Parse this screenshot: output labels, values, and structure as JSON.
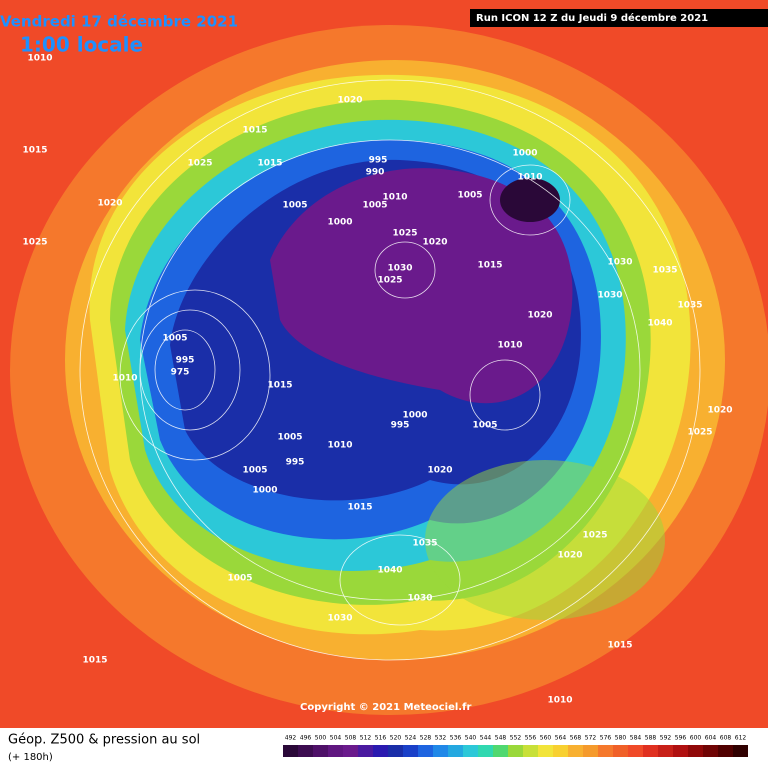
{
  "header": {
    "date": "Vendredi 17 décembre 2021",
    "time": "1:00 locale",
    "run": "Run ICON 12 Z du Jeudi 9 décembre 2021"
  },
  "copyright": "Copyright © 2021 Meteociel.fr",
  "legend": {
    "title": "Géop. Z500 & pression au sol",
    "lead": "(+ 180h)",
    "scale": [
      "492",
      "496",
      "500",
      "504",
      "508",
      "512",
      "516",
      "520",
      "524",
      "528",
      "532",
      "536",
      "540",
      "544",
      "548",
      "552",
      "556",
      "560",
      "564",
      "568",
      "572",
      "576",
      "580",
      "584",
      "588",
      "592",
      "596",
      "600",
      "604",
      "608",
      "612"
    ]
  },
  "pressure_labels": [
    "1010",
    "1015",
    "1020",
    "1025",
    "1015",
    "1020",
    "1025",
    "1015",
    "1005",
    "995",
    "990",
    "1000",
    "1005",
    "1010",
    "1025",
    "1030",
    "1025",
    "1020",
    "1000",
    "1010",
    "1005",
    "1015",
    "1020",
    "1030",
    "1035",
    "1040",
    "1030",
    "1035",
    "1025",
    "1020",
    "1005",
    "975",
    "1010",
    "1015",
    "1005",
    "995",
    "1005",
    "995",
    "1000",
    "1010",
    "1015",
    "1000",
    "995",
    "1005",
    "1035",
    "1040",
    "1030",
    "1030",
    "1025",
    "1020",
    "1015",
    "1010",
    "1005",
    "1015",
    "1020",
    "1010"
  ]
}
